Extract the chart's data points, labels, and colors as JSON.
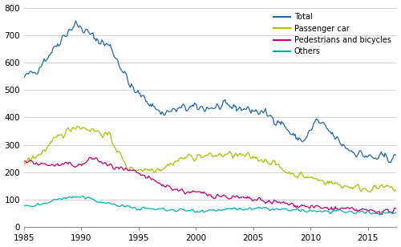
{
  "title": "",
  "xlabel": "",
  "ylabel": "",
  "ylim": [
    0,
    800
  ],
  "xlim": [
    1985.0,
    2017.5
  ],
  "xticks": [
    1985,
    1990,
    1995,
    2000,
    2005,
    2010,
    2015
  ],
  "yticks": [
    0,
    100,
    200,
    300,
    400,
    500,
    600,
    700,
    800
  ],
  "legend_labels": [
    "Total",
    "Passenger car",
    "Pedestrians and bicycles",
    "Others"
  ],
  "line_colors": [
    "#2166ac",
    "#a6c200",
    "#c2007a",
    "#00b0b0"
  ],
  "background_color": "#ffffff",
  "grid_color": "#cccccc",
  "figsize": [
    5.0,
    3.08
  ],
  "dpi": 100
}
